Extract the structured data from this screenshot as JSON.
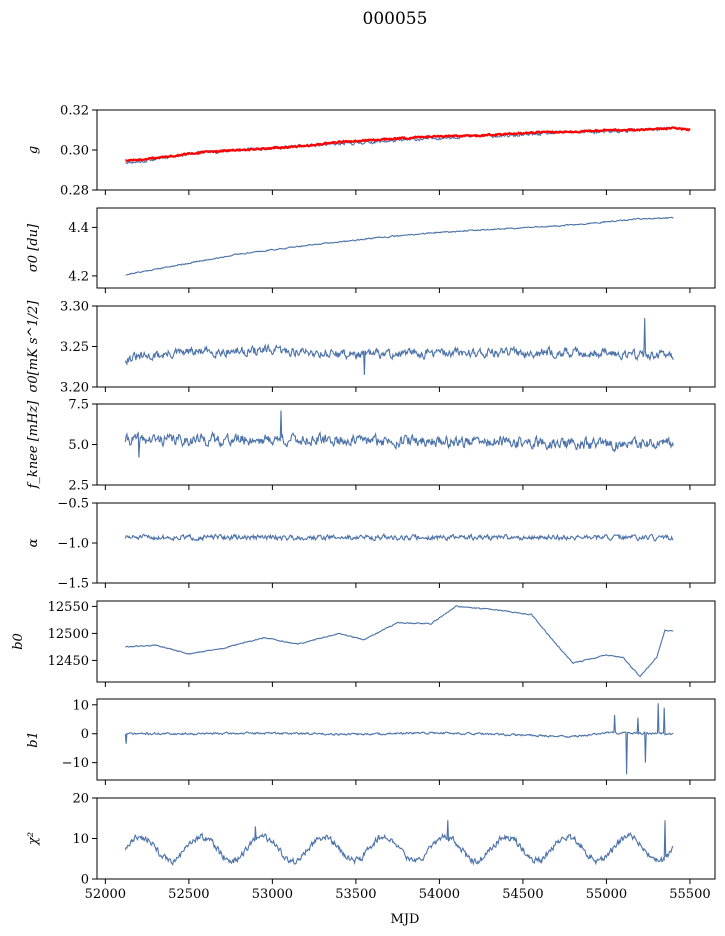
{
  "figure": {
    "title": "000055",
    "xlabel": "MJD",
    "xlim": [
      51950,
      55650
    ],
    "xticks": [
      52000,
      52500,
      53000,
      53500,
      54000,
      54500,
      55000,
      55500
    ],
    "data_range": [
      52120,
      55400
    ]
  },
  "chart_data": [
    {
      "type": "line",
      "ylabel": "g",
      "ylim": [
        0.28,
        0.32
      ],
      "yticks": [
        "0.28",
        "0.30",
        "0.32"
      ],
      "ytick_values": [
        0.28,
        0.3,
        0.32
      ],
      "series": [
        {
          "color": "#4c72a8",
          "x": [
            52120,
            52200,
            52400,
            52600,
            52800,
            53000,
            53200,
            53400,
            53600,
            53800,
            54000,
            54200,
            54400,
            54600,
            54800,
            55000,
            55200,
            55400
          ],
          "values": [
            0.294,
            0.294,
            0.297,
            0.299,
            0.3,
            0.301,
            0.302,
            0.303,
            0.304,
            0.305,
            0.306,
            0.307,
            0.307,
            0.308,
            0.309,
            0.309,
            0.31,
            0.311
          ],
          "noise": 0.0012,
          "seed": 11
        },
        {
          "color": "#ff0000",
          "x": [
            52120,
            52200,
            52400,
            52600,
            52800,
            53000,
            53200,
            53400,
            53600,
            53800,
            54000,
            54200,
            54400,
            54600,
            54800,
            55000,
            55200,
            55400,
            55500
          ],
          "values": [
            0.295,
            0.295,
            0.297,
            0.299,
            0.3,
            0.301,
            0.302,
            0.304,
            0.305,
            0.306,
            0.307,
            0.307,
            0.308,
            0.309,
            0.309,
            0.31,
            0.31,
            0.311,
            0.31
          ],
          "noise": 0.0006,
          "seed": 12
        }
      ]
    },
    {
      "type": "line",
      "ylabel": "σ0 [du]",
      "ylim": [
        4.15,
        4.48
      ],
      "yticks": [
        "4.2",
        "4.4"
      ],
      "ytick_values": [
        4.2,
        4.4
      ],
      "series": [
        {
          "color": "#4c72a8",
          "x": [
            52120,
            52400,
            52800,
            53200,
            53600,
            54000,
            54400,
            54800,
            55200,
            55400
          ],
          "values": [
            4.205,
            4.24,
            4.29,
            4.325,
            4.355,
            4.38,
            4.395,
            4.41,
            4.435,
            4.44
          ],
          "noise": 0.004,
          "seed": 21
        }
      ]
    },
    {
      "type": "line",
      "ylabel": "σ0[mK s^1/2]",
      "ylim": [
        3.2,
        3.3
      ],
      "yticks": [
        "3.20",
        "3.25",
        "3.30"
      ],
      "ytick_values": [
        3.2,
        3.25,
        3.3
      ],
      "series": [
        {
          "color": "#4c72a8",
          "x": [
            52120,
            52500,
            53000,
            53500,
            54000,
            54500,
            55000,
            55400
          ],
          "values": [
            3.235,
            3.243,
            3.245,
            3.24,
            3.242,
            3.243,
            3.242,
            3.238
          ],
          "noise": 0.009,
          "seed": 31,
          "spikes": [
            [
              55230,
              3.285
            ],
            [
              53550,
              3.215
            ]
          ]
        }
      ]
    },
    {
      "type": "line",
      "ylabel": "f_knee [mHz]",
      "ylim": [
        2.5,
        7.5
      ],
      "yticks": [
        "2.5",
        "5.0",
        "7.5"
      ],
      "ytick_values": [
        2.5,
        5.0,
        7.5
      ],
      "series": [
        {
          "color": "#4c72a8",
          "x": [
            52120,
            53000,
            54000,
            55000,
            55400
          ],
          "values": [
            5.3,
            5.3,
            5.2,
            5.0,
            5.0
          ],
          "noise": 0.55,
          "seed": 41,
          "spikes": [
            [
              53050,
              7.1
            ],
            [
              52200,
              4.2
            ]
          ]
        }
      ]
    },
    {
      "type": "line",
      "ylabel": "α",
      "ylim": [
        -1.5,
        -0.5
      ],
      "yticks": [
        "−1.5",
        "−1.0",
        "−0.5"
      ],
      "ytick_values": [
        -1.5,
        -1.0,
        -0.5
      ],
      "series": [
        {
          "color": "#4c72a8",
          "x": [
            52120,
            53000,
            54000,
            55000,
            55400
          ],
          "values": [
            -0.93,
            -0.93,
            -0.93,
            -0.93,
            -0.94
          ],
          "noise": 0.05,
          "seed": 51
        }
      ]
    },
    {
      "type": "line",
      "ylabel": "b0",
      "ylim": [
        12410,
        12560
      ],
      "yticks": [
        "12450",
        "12500",
        "12550"
      ],
      "ytick_values": [
        12450,
        12500,
        12550
      ],
      "series": [
        {
          "color": "#4c72a8",
          "x": [
            52120,
            52300,
            52500,
            52700,
            52950,
            53150,
            53400,
            53550,
            53750,
            53950,
            54100,
            54300,
            54550,
            54700,
            54800,
            55000,
            55100,
            55200,
            55300,
            55350,
            55400
          ],
          "values": [
            12475,
            12478,
            12462,
            12472,
            12492,
            12480,
            12500,
            12488,
            12520,
            12518,
            12550,
            12545,
            12535,
            12480,
            12445,
            12460,
            12455,
            12420,
            12455,
            12505,
            12505
          ],
          "noise": 1.6,
          "seed": 61
        }
      ]
    },
    {
      "type": "line",
      "ylabel": "b1",
      "ylim": [
        -16,
        12
      ],
      "yticks": [
        "−10",
        "0",
        "10"
      ],
      "ytick_values": [
        -10,
        0,
        10
      ],
      "series": [
        {
          "color": "#4c72a8",
          "x": [
            52120,
            52500,
            53000,
            53500,
            54000,
            54500,
            54800,
            55000,
            55400
          ],
          "values": [
            0.0,
            0.0,
            0.2,
            -0.2,
            0.3,
            -0.5,
            -1.0,
            0.3,
            0.0
          ],
          "noise": 0.55,
          "seed": 71,
          "spikes": [
            [
              52125,
              -3.5
            ],
            [
              55050,
              6.5
            ],
            [
              55120,
              -14
            ],
            [
              55190,
              5.5
            ],
            [
              55235,
              -10
            ],
            [
              55310,
              10.5
            ],
            [
              55345,
              9
            ]
          ]
        }
      ]
    },
    {
      "type": "line",
      "ylabel": "χ²",
      "ylim": [
        0,
        20
      ],
      "yticks": [
        "0",
        "10",
        "20"
      ],
      "ytick_values": [
        0,
        10,
        20
      ],
      "series": [
        {
          "color": "#4c72a8",
          "x": [
            52120,
            55400
          ],
          "values": [
            7.5,
            7.5
          ],
          "noise": 1.3,
          "seed": 81,
          "seasonal": {
            "amplitude": 3,
            "period": 365
          },
          "spikes": [
            [
              52900,
              13
            ],
            [
              54050,
              14.5
            ],
            [
              55350,
              14.5
            ]
          ]
        }
      ]
    }
  ]
}
